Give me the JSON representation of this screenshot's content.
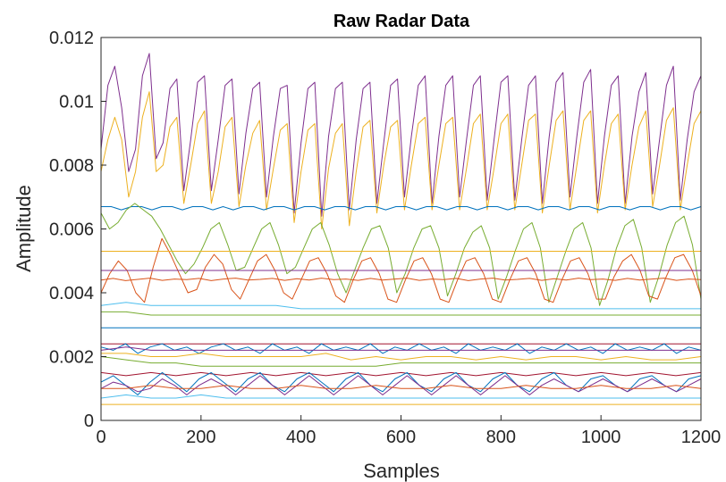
{
  "chart_data": {
    "type": "line",
    "title": "Raw Radar Data",
    "xlabel": "Samples",
    "ylabel": "Amplitude",
    "xlim": [
      0,
      1200
    ],
    "ylim": [
      0,
      0.012
    ],
    "xticks": [
      0,
      200,
      400,
      600,
      800,
      1000,
      1200
    ],
    "xtick_labels": [
      "0",
      "200",
      "400",
      "600",
      "800",
      "1000",
      "1200"
    ],
    "yticks": [
      0,
      0.002,
      0.004,
      0.006,
      0.008,
      0.01,
      0.012
    ],
    "ytick_labels": [
      "0",
      "0.002",
      "0.004",
      "0.006",
      "0.008",
      "0.01",
      "0.012"
    ],
    "grid": false,
    "legend": "none",
    "series": [
      {
        "color": "#7E2F8E",
        "values": [
          0.0085,
          0.0105,
          0.0111,
          0.0098,
          0.0078,
          0.0085,
          0.0108,
          0.0115,
          0.0082,
          0.0087,
          0.0104,
          0.0107,
          0.0072,
          0.0088,
          0.0106,
          0.0108,
          0.0072,
          0.0088,
          0.0105,
          0.0107,
          0.0071,
          0.009,
          0.0104,
          0.0106,
          0.007,
          0.0089,
          0.0104,
          0.0105,
          0.0065,
          0.0087,
          0.0104,
          0.0106,
          0.0064,
          0.0089,
          0.0104,
          0.0106,
          0.0066,
          0.0088,
          0.0104,
          0.0106,
          0.0068,
          0.0087,
          0.0105,
          0.0107,
          0.007,
          0.0089,
          0.0105,
          0.0108,
          0.0068,
          0.0089,
          0.0105,
          0.0108,
          0.007,
          0.0088,
          0.0105,
          0.0108,
          0.0069,
          0.0088,
          0.0106,
          0.0108,
          0.0069,
          0.0088,
          0.0105,
          0.0108,
          0.0068,
          0.0089,
          0.0106,
          0.0109,
          0.007,
          0.0089,
          0.0106,
          0.011,
          0.0068,
          0.0089,
          0.0105,
          0.0108,
          0.0068,
          0.0089,
          0.0103,
          0.0109,
          0.0071,
          0.0088,
          0.0105,
          0.0111,
          0.0069,
          0.0088,
          0.0103,
          0.0108
        ]
      },
      {
        "color": "#EDB120",
        "values": [
          0.0078,
          0.0088,
          0.0095,
          0.0088,
          0.007,
          0.0078,
          0.0095,
          0.0103,
          0.0078,
          0.008,
          0.0092,
          0.0095,
          0.0068,
          0.008,
          0.0093,
          0.0097,
          0.0068,
          0.0078,
          0.0092,
          0.0095,
          0.0067,
          0.008,
          0.009,
          0.0094,
          0.0066,
          0.0079,
          0.0091,
          0.0093,
          0.0062,
          0.0078,
          0.0091,
          0.0093,
          0.006,
          0.0079,
          0.009,
          0.0093,
          0.0061,
          0.0078,
          0.0092,
          0.0094,
          0.0065,
          0.008,
          0.0092,
          0.0094,
          0.0066,
          0.008,
          0.0093,
          0.0095,
          0.0066,
          0.008,
          0.0093,
          0.0095,
          0.0066,
          0.0079,
          0.0093,
          0.0096,
          0.0066,
          0.0079,
          0.0093,
          0.0096,
          0.0066,
          0.008,
          0.0094,
          0.0096,
          0.0065,
          0.008,
          0.0094,
          0.0097,
          0.0066,
          0.008,
          0.0094,
          0.0097,
          0.0065,
          0.008,
          0.0093,
          0.0096,
          0.0066,
          0.008,
          0.0092,
          0.0097,
          0.0067,
          0.008,
          0.0094,
          0.0098,
          0.0066,
          0.008,
          0.0093,
          0.0097
        ]
      },
      {
        "color": "#0072BD",
        "values": [
          0.0067,
          0.0067,
          0.0066,
          0.0067,
          0.0067,
          0.0066,
          0.0067,
          0.0067,
          0.0066,
          0.0067,
          0.0067,
          0.0066,
          0.0067,
          0.0066,
          0.0067,
          0.0067,
          0.0066,
          0.0067,
          0.0067,
          0.0066,
          0.0067,
          0.0067,
          0.0066,
          0.0067,
          0.0067,
          0.0066,
          0.0067,
          0.0067,
          0.0066,
          0.0067,
          0.0067,
          0.0066,
          0.0067,
          0.0067,
          0.0066,
          0.0067,
          0.0067,
          0.0066,
          0.0067,
          0.0067,
          0.0066,
          0.0067,
          0.0067,
          0.0066,
          0.0067,
          0.0067,
          0.0066,
          0.0067,
          0.0067,
          0.0066,
          0.0067,
          0.0067,
          0.0066,
          0.0067,
          0.0067,
          0.0066,
          0.0067,
          0.0067,
          0.0066,
          0.0067
        ]
      },
      {
        "color": "#77AC30",
        "values": [
          0.0065,
          0.006,
          0.0062,
          0.0066,
          0.0068,
          0.0066,
          0.0064,
          0.006,
          0.0055,
          0.005,
          0.0046,
          0.0049,
          0.0054,
          0.006,
          0.0062,
          0.0055,
          0.0047,
          0.0048,
          0.0054,
          0.006,
          0.0062,
          0.0055,
          0.0046,
          0.0048,
          0.0054,
          0.006,
          0.0062,
          0.0055,
          0.0046,
          0.004,
          0.0047,
          0.0054,
          0.006,
          0.0061,
          0.0054,
          0.004,
          0.0046,
          0.0054,
          0.006,
          0.0061,
          0.0054,
          0.0039,
          0.0046,
          0.0054,
          0.0059,
          0.0061,
          0.0054,
          0.0038,
          0.0045,
          0.0053,
          0.006,
          0.0062,
          0.0054,
          0.0037,
          0.0045,
          0.0053,
          0.006,
          0.0062,
          0.0054,
          0.0036,
          0.0044,
          0.0054,
          0.0061,
          0.0063,
          0.0054,
          0.0037,
          0.0045,
          0.0055,
          0.0062,
          0.0064,
          0.0055,
          0.0038
        ]
      },
      {
        "color": "#D95319",
        "values": [
          0.004,
          0.0046,
          0.005,
          0.0047,
          0.004,
          0.0037,
          0.0048,
          0.0057,
          0.0052,
          0.0046,
          0.004,
          0.0041,
          0.0048,
          0.0052,
          0.0049,
          0.0041,
          0.0038,
          0.0044,
          0.005,
          0.0052,
          0.0047,
          0.004,
          0.0038,
          0.0044,
          0.005,
          0.0051,
          0.0046,
          0.0039,
          0.0037,
          0.0044,
          0.005,
          0.0051,
          0.0046,
          0.0038,
          0.0037,
          0.0044,
          0.005,
          0.0051,
          0.0046,
          0.0038,
          0.0037,
          0.0044,
          0.005,
          0.0051,
          0.0046,
          0.0038,
          0.0037,
          0.0044,
          0.005,
          0.0051,
          0.0046,
          0.0038,
          0.0037,
          0.0044,
          0.005,
          0.0051,
          0.0046,
          0.0038,
          0.0038,
          0.0045,
          0.005,
          0.0052,
          0.0047,
          0.0039,
          0.0038,
          0.0045,
          0.0051,
          0.0052,
          0.0047,
          0.0039
        ]
      },
      {
        "color": "#EDB120",
        "values": [
          0.0053,
          0.0053,
          0.0053,
          0.0053,
          0.0053,
          0.0053,
          0.0053,
          0.0053,
          0.0053,
          0.0053,
          0.0053,
          0.0053,
          0.0053,
          0.0053,
          0.0053,
          0.0053,
          0.0053,
          0.0053,
          0.0053,
          0.0053,
          0.0053,
          0.0053,
          0.0053,
          0.0053,
          0.0053
        ]
      },
      {
        "color": "#7E2F8E",
        "values": [
          0.0047,
          0.0047,
          0.0047,
          0.0047,
          0.0047,
          0.0047,
          0.0047,
          0.0047,
          0.0047,
          0.0047,
          0.0047,
          0.0047,
          0.0047,
          0.0047,
          0.0047,
          0.0047,
          0.0047,
          0.0047,
          0.0047,
          0.0047,
          0.0047,
          0.0047,
          0.0047,
          0.0047,
          0.0047
        ]
      },
      {
        "color": "#D95319",
        "values": [
          0.0044,
          0.00445,
          0.00438,
          0.00442,
          0.00446,
          0.00439,
          0.00443,
          0.00441,
          0.00445,
          0.00438,
          0.00443,
          0.00446,
          0.0044,
          0.00442,
          0.00445,
          0.00439,
          0.00444,
          0.0044,
          0.00446,
          0.00441,
          0.00443,
          0.00439,
          0.00445,
          0.0044,
          0.00443,
          0.00446,
          0.00439,
          0.00443,
          0.00441,
          0.00445,
          0.00438,
          0.00443,
          0.00446,
          0.0044,
          0.00442,
          0.00445,
          0.00439,
          0.00444,
          0.0044,
          0.00446,
          0.00441,
          0.00443,
          0.00439,
          0.00445,
          0.0044,
          0.00443,
          0.00446,
          0.00439,
          0.00443,
          0.00441
        ]
      },
      {
        "color": "#4DBEEE",
        "values": [
          0.0036,
          0.0037,
          0.0036,
          0.0036,
          0.0036,
          0.0036,
          0.0036,
          0.0036,
          0.0035,
          0.0035,
          0.0035,
          0.0035,
          0.0035,
          0.0035,
          0.0035,
          0.0035,
          0.0035,
          0.0035,
          0.0035,
          0.0035,
          0.0035,
          0.0035,
          0.0035,
          0.0035,
          0.0035
        ]
      },
      {
        "color": "#77AC30",
        "values": [
          0.0034,
          0.0034,
          0.0033,
          0.0033,
          0.0033,
          0.0033,
          0.0033,
          0.0033,
          0.0033,
          0.0033,
          0.0033,
          0.0033,
          0.0033,
          0.0033,
          0.0033,
          0.0033,
          0.0033,
          0.0033,
          0.0033,
          0.0033,
          0.0033,
          0.0033,
          0.0033,
          0.0033,
          0.0033
        ]
      },
      {
        "color": "#0072BD",
        "values": [
          0.0029,
          0.0029,
          0.0029,
          0.0029,
          0.0029,
          0.0029,
          0.0029,
          0.0029,
          0.0029,
          0.0029,
          0.0029,
          0.0029,
          0.0029,
          0.0029,
          0.0029,
          0.0029,
          0.0029,
          0.0029,
          0.0029,
          0.0029,
          0.0029,
          0.0029,
          0.0029,
          0.0029,
          0.0029
        ]
      },
      {
        "color": "#A2142F",
        "values": [
          0.0024,
          0.0024,
          0.0024,
          0.0024,
          0.0024,
          0.0024,
          0.0024,
          0.0024,
          0.0024,
          0.0024,
          0.0024,
          0.0024,
          0.0024,
          0.0024,
          0.0024,
          0.0024,
          0.0024,
          0.0024,
          0.0024,
          0.0024,
          0.0024,
          0.0024,
          0.0024,
          0.0024,
          0.0024
        ]
      },
      {
        "color": "#0072BD",
        "values": [
          0.0023,
          0.0022,
          0.0024,
          0.0021,
          0.0023,
          0.0024,
          0.0022,
          0.0023,
          0.0021,
          0.0023,
          0.0024,
          0.0022,
          0.0023,
          0.0021,
          0.0024,
          0.0022,
          0.0023,
          0.0021,
          0.0024,
          0.0022,
          0.0023,
          0.0022,
          0.0024,
          0.0021,
          0.0023,
          0.0022,
          0.0024,
          0.0022,
          0.0023,
          0.0021,
          0.0024,
          0.0022,
          0.0023,
          0.0022,
          0.0024,
          0.0021,
          0.0023,
          0.0022,
          0.0024,
          0.0022,
          0.0023,
          0.0021,
          0.0024,
          0.0022,
          0.0023,
          0.0022,
          0.0024,
          0.0021,
          0.0023,
          0.0022
        ]
      },
      {
        "color": "#7E2F8E",
        "values": [
          0.0022,
          0.0023,
          0.0022,
          0.0022,
          0.0022,
          0.0022,
          0.0022,
          0.0022,
          0.0022,
          0.0022,
          0.0022,
          0.0022,
          0.0022,
          0.0022,
          0.0022,
          0.0022,
          0.0022,
          0.0022,
          0.0022,
          0.0022,
          0.0022,
          0.0022,
          0.0022,
          0.0022,
          0.0022
        ]
      },
      {
        "color": "#EDB120",
        "values": [
          0.0021,
          0.0021,
          0.002,
          0.002,
          0.0021,
          0.002,
          0.002,
          0.002,
          0.002,
          0.0021,
          0.0019,
          0.002,
          0.0019,
          0.002,
          0.002,
          0.0019,
          0.002,
          0.0019,
          0.002,
          0.002,
          0.0019,
          0.002,
          0.0019,
          0.0019,
          0.002
        ]
      },
      {
        "color": "#77AC30",
        "values": [
          0.002,
          0.0019,
          0.0018,
          0.0018,
          0.0017,
          0.0017,
          0.0017,
          0.0017,
          0.0017,
          0.0017,
          0.0017,
          0.0017,
          0.0018,
          0.0018,
          0.0018,
          0.0018,
          0.0018,
          0.0018,
          0.0018,
          0.0018,
          0.0018,
          0.0018,
          0.0018,
          0.0018,
          0.0018
        ]
      },
      {
        "color": "#A2142F",
        "values": [
          0.0015,
          0.0014,
          0.0015,
          0.0014,
          0.0015,
          0.0014,
          0.0015,
          0.0014,
          0.0015,
          0.0014,
          0.0015,
          0.0014,
          0.0015,
          0.0014,
          0.0015,
          0.0014,
          0.0015,
          0.0014,
          0.0015,
          0.0014,
          0.0015,
          0.0014,
          0.0015,
          0.0014,
          0.0015
        ]
      },
      {
        "color": "#0072BD",
        "values": [
          0.0012,
          0.0014,
          0.0011,
          0.0008,
          0.0012,
          0.0015,
          0.0012,
          0.0009,
          0.0013,
          0.0015,
          0.0012,
          0.0009,
          0.0013,
          0.0015,
          0.0011,
          0.0009,
          0.0013,
          0.0015,
          0.0012,
          0.0009,
          0.0013,
          0.0015,
          0.0011,
          0.0009,
          0.0013,
          0.0015,
          0.0011,
          0.0009,
          0.0013,
          0.0015,
          0.0011,
          0.0009,
          0.0013,
          0.0015,
          0.0011,
          0.0009,
          0.0013,
          0.0015,
          0.0011,
          0.0009,
          0.0013,
          0.0014,
          0.0011,
          0.0009,
          0.0013,
          0.0014,
          0.0011,
          0.0009,
          0.0013,
          0.0014
        ]
      },
      {
        "color": "#7E2F8E",
        "values": [
          0.001,
          0.0012,
          0.0011,
          0.0009,
          0.001,
          0.0013,
          0.0011,
          0.0008,
          0.0011,
          0.0013,
          0.0011,
          0.0008,
          0.0011,
          0.0014,
          0.0011,
          0.0008,
          0.0011,
          0.0014,
          0.0011,
          0.0008,
          0.0011,
          0.0014,
          0.0011,
          0.0008,
          0.0011,
          0.0014,
          0.0011,
          0.0008,
          0.0011,
          0.0014,
          0.0011,
          0.0008,
          0.0011,
          0.0014,
          0.0011,
          0.0008,
          0.0011,
          0.0013,
          0.0011,
          0.0009,
          0.0011,
          0.0013,
          0.0011,
          0.0009,
          0.0011,
          0.0013,
          0.0011,
          0.0009,
          0.0011,
          0.0013
        ]
      },
      {
        "color": "#D95319",
        "values": [
          0.001,
          0.001,
          0.0011,
          0.001,
          0.001,
          0.0011,
          0.001,
          0.001,
          0.0011,
          0.001,
          0.001,
          0.0011,
          0.001,
          0.001,
          0.0011,
          0.001,
          0.001,
          0.0011,
          0.001,
          0.001,
          0.0011,
          0.001,
          0.001,
          0.0011,
          0.001
        ]
      },
      {
        "color": "#4DBEEE",
        "values": [
          0.0007,
          0.0008,
          0.0007,
          0.0007,
          0.0008,
          0.0007,
          0.0007,
          0.0007,
          0.0007,
          0.0007,
          0.0007,
          0.0007,
          0.0007,
          0.0007,
          0.0007,
          0.0007,
          0.0007,
          0.0007,
          0.0007,
          0.0007,
          0.0007,
          0.0007,
          0.0007,
          0.0007,
          0.0007
        ]
      },
      {
        "color": "#EDB120",
        "values": [
          0.0005,
          0.0005,
          0.0005,
          0.0005,
          0.0005,
          0.0005,
          0.0005,
          0.0005,
          0.0005,
          0.0005,
          0.0005,
          0.0005,
          0.0005,
          0.0005,
          0.0005,
          0.0005,
          0.0005,
          0.0005,
          0.0005,
          0.0005,
          0.0005,
          0.0005,
          0.0005,
          0.0005,
          0.0005
        ]
      }
    ]
  }
}
